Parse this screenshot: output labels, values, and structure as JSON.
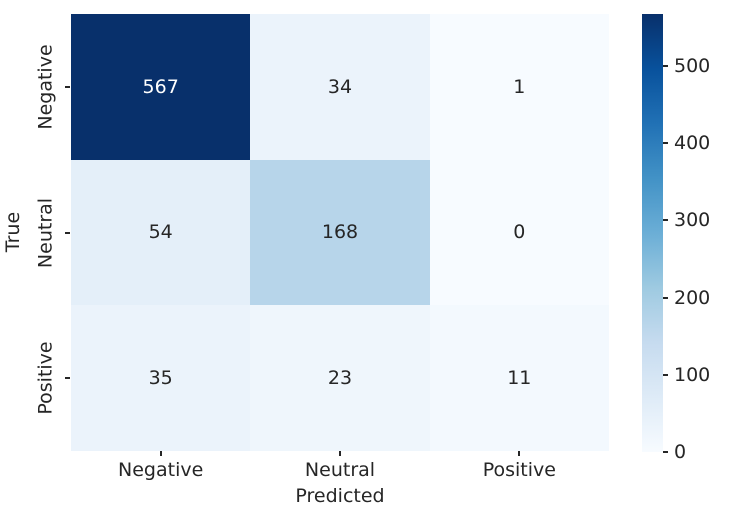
{
  "chart_data": {
    "type": "heatmap",
    "title": "",
    "xlabel": "Predicted",
    "ylabel": "True",
    "x_tick_labels": [
      "Negative",
      "Neutral",
      "Positive"
    ],
    "y_tick_labels": [
      "Negative",
      "Neutral",
      "Positive"
    ],
    "values": [
      [
        567,
        34,
        1
      ],
      [
        54,
        168,
        0
      ],
      [
        35,
        23,
        11
      ]
    ],
    "vmin": 0,
    "vmax": 567,
    "colorbar": {
      "position": "right",
      "ticks": [
        0,
        100,
        200,
        300,
        400,
        500
      ]
    },
    "colormap": {
      "name": "Blues",
      "stops": [
        "#f7fbff",
        "#deebf7",
        "#c6dbef",
        "#9ecae1",
        "#6baed6",
        "#4292c6",
        "#2171b5",
        "#08519c",
        "#08306b"
      ]
    },
    "colors": {
      "background": "#ffffff",
      "tick_text": "#262626",
      "annotation_on_dark": "#ffffff",
      "annotation_on_light": "#262626"
    },
    "layout_hints": {
      "grid": "off",
      "legend": "none",
      "cell_annotations": true
    }
  }
}
